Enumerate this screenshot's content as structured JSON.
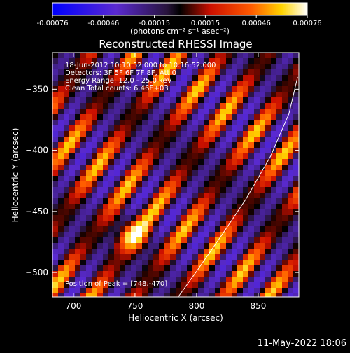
{
  "colorbar": {
    "ticks": [
      "-0.00076",
      "-0.00046",
      "-0.00015",
      "0.00015",
      "0.00046",
      "0.00076"
    ],
    "unit_label": "(photons cm⁻² s⁻¹ asec⁻²)",
    "range": [
      -0.00076,
      0.00076
    ]
  },
  "header": {
    "title": "Reconstructed RHESSI Image",
    "info_lines": [
      "18-Jun-2012 10:10:52.000 to 10:16:52.000",
      "Detectors: 3F 5F 6F 7F 8F, Att 0",
      "Energy Range: 12.0 - 25.0 keV",
      "Clean    Total counts: 6.46E+03"
    ]
  },
  "peak_label": "Position of Peak = [748,-470]",
  "footer": {
    "timestamp": "11-May-2022 18:06"
  },
  "chart_data": {
    "type": "heatmap",
    "title": "Reconstructed RHESSI Image",
    "xlabel": "Heliocentric X (arcsec)",
    "ylabel": "Heliocentric Y (arcsec)",
    "xlim": [
      683,
      883
    ],
    "ylim": [
      -520,
      -320
    ],
    "x_ticks": [
      700,
      750,
      800,
      850
    ],
    "y_ticks": [
      -350,
      -400,
      -450,
      -500
    ],
    "colorscale": "rhessi-blue-purple-red-yellow-white",
    "value_range": [
      -0.00076,
      0.00076
    ],
    "peak": [
      748,
      -470
    ],
    "limb_curve": [
      [
        785,
        -520
      ],
      [
        800,
        -499
      ],
      [
        820,
        -470
      ],
      [
        840,
        -440
      ],
      [
        860,
        -405
      ],
      [
        875,
        -370
      ],
      [
        882,
        -340
      ]
    ]
  }
}
